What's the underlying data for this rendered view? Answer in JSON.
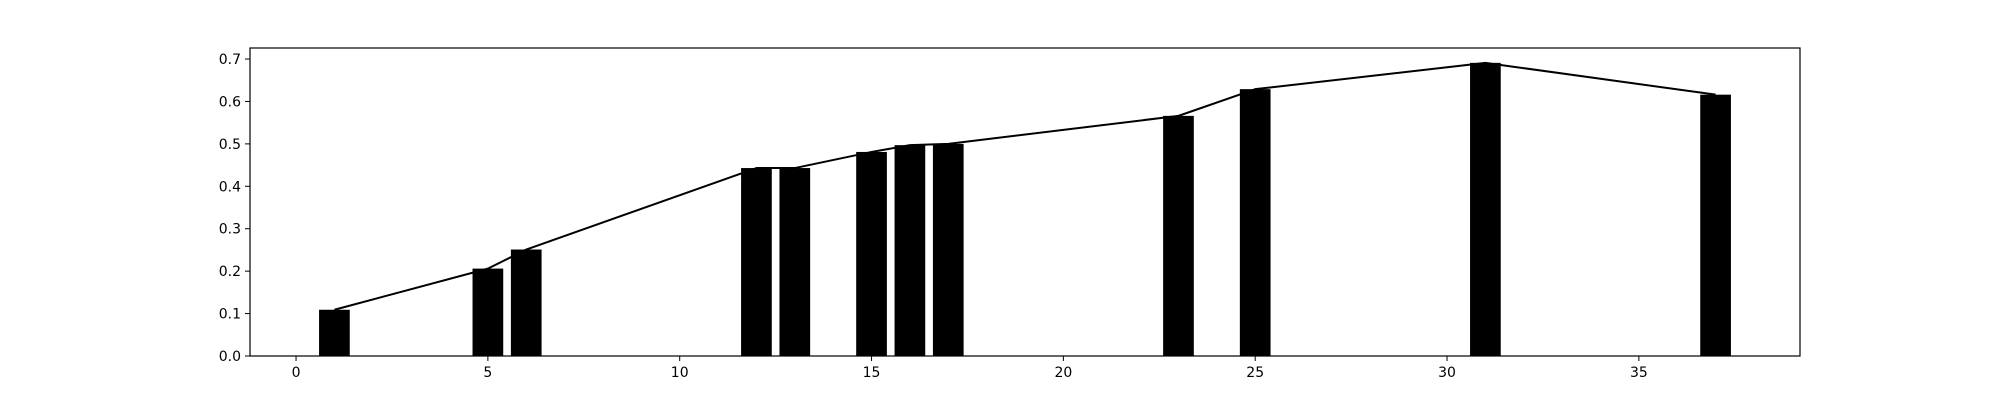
{
  "chart_data": {
    "type": "bar",
    "x": [
      1,
      5,
      6,
      12,
      13,
      15,
      16,
      17,
      23,
      25,
      31,
      37
    ],
    "values": [
      0.109,
      0.206,
      0.251,
      0.443,
      0.443,
      0.481,
      0.497,
      0.5,
      0.566,
      0.629,
      0.691,
      0.616
    ],
    "overlay_line": {
      "type": "line",
      "x": [
        1,
        5,
        6,
        12,
        13,
        15,
        16,
        17,
        23,
        25,
        31,
        37
      ],
      "values": [
        0.109,
        0.206,
        0.251,
        0.443,
        0.443,
        0.481,
        0.497,
        0.5,
        0.566,
        0.629,
        0.691,
        0.616
      ]
    },
    "title": "",
    "xlabel": "",
    "ylabel": "",
    "xlim": [
      -1.2,
      39.2
    ],
    "ylim": [
      0,
      0.726
    ],
    "xticks": [
      0,
      5,
      10,
      15,
      20,
      25,
      30,
      35
    ],
    "yticks": [
      0.0,
      0.1,
      0.2,
      0.3,
      0.4,
      0.5,
      0.6,
      0.7
    ],
    "xtick_labels": [
      "0",
      "5",
      "10",
      "15",
      "20",
      "25",
      "30",
      "35"
    ],
    "ytick_labels": [
      "0.0",
      "0.1",
      "0.2",
      "0.3",
      "0.4",
      "0.5",
      "0.6",
      "0.7"
    ],
    "bar_width": 0.8,
    "grid": false,
    "bar_color": "#000000",
    "line_color": "#000000"
  }
}
